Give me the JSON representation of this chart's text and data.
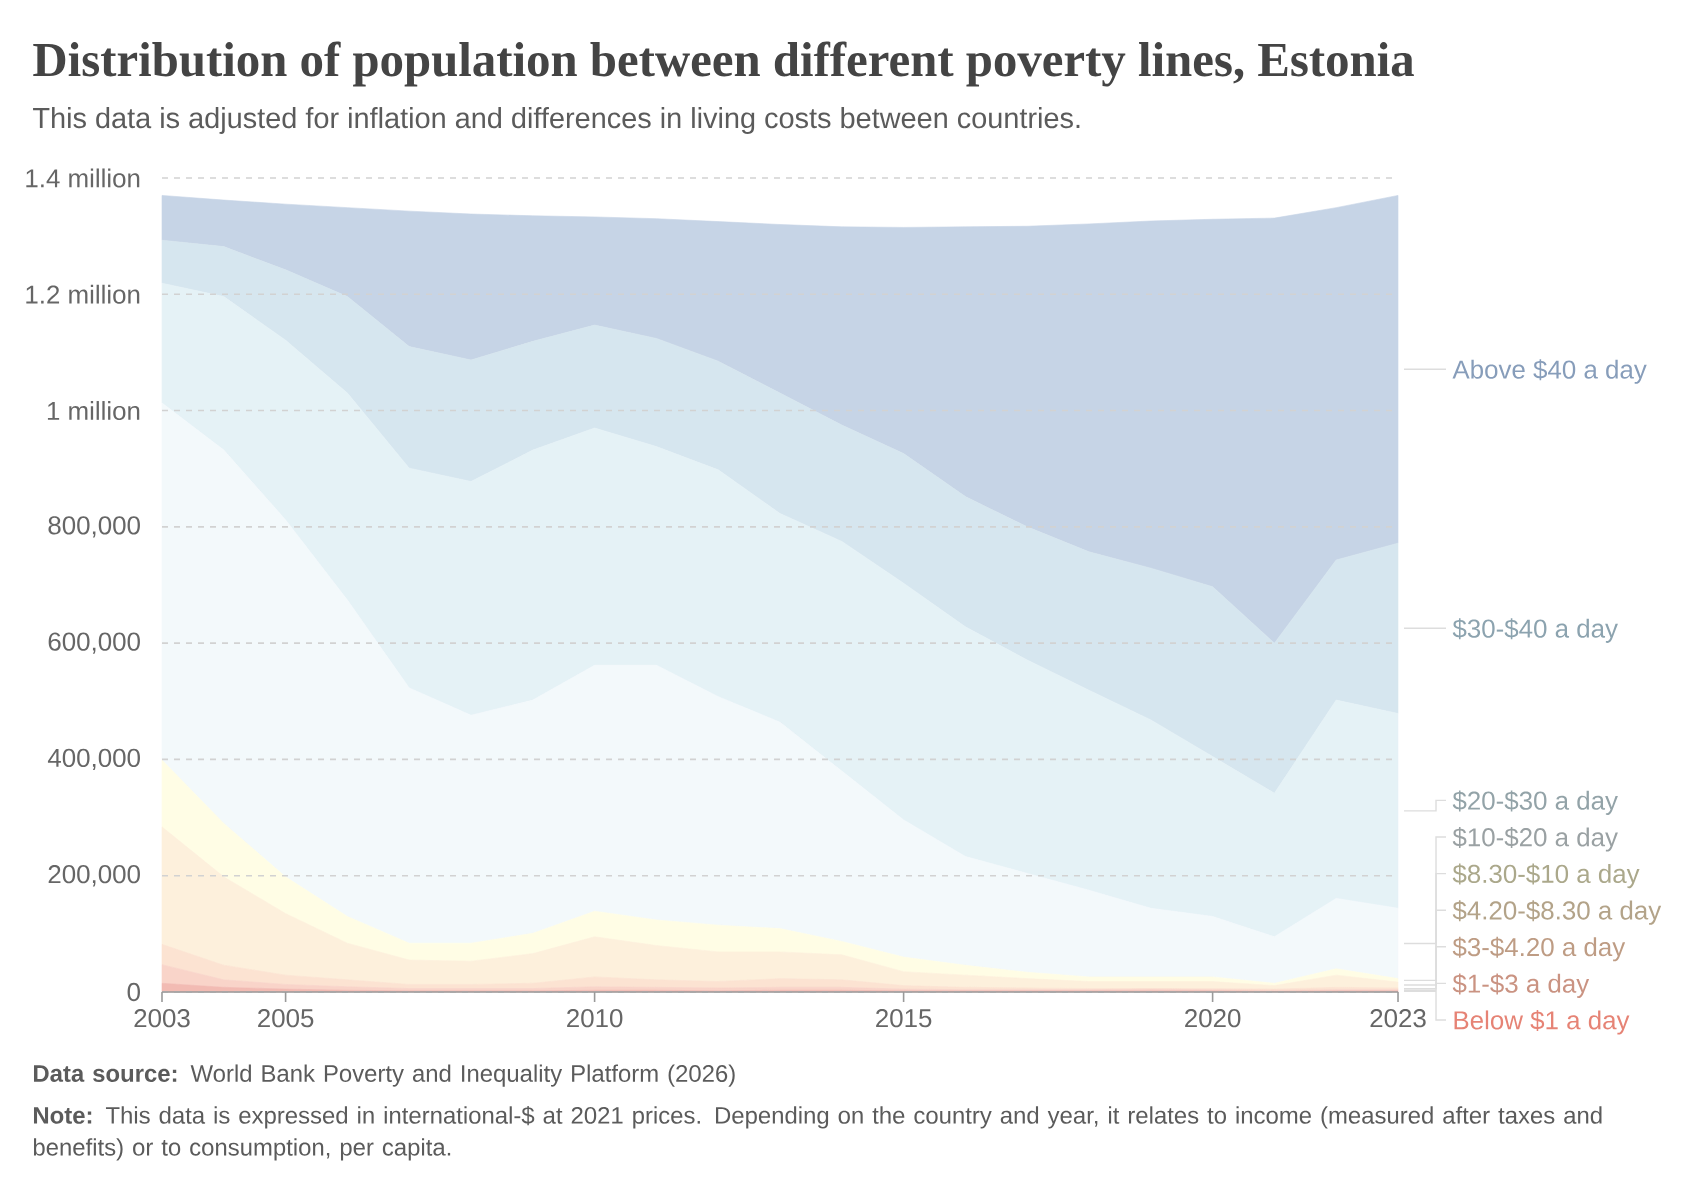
{
  "chart_data": {
    "type": "area",
    "stacked": true,
    "title": "Distribution of population between different poverty lines, Estonia",
    "subtitle": "This data is adjusted for inflation and differences in living costs between countries.",
    "annotations": [
      "**Data source:** World Bank Poverty and Inequality Platform (2026)",
      "**Note:** This data is expressed in international-$ at 2021 prices. Depending on the country and year, it relates to income (measured after taxes and benefits) or to consumption, per capita."
    ],
    "x": [
      2003,
      2004,
      2005,
      2006,
      2007,
      2008,
      2009,
      2010,
      2011,
      2012,
      2013,
      2014,
      2015,
      2016,
      2017,
      2018,
      2019,
      2020,
      2021,
      2022,
      2023
    ],
    "xlim": [
      2003,
      2023
    ],
    "xticks": [
      2003,
      2005,
      2010,
      2015,
      2020,
      2023
    ],
    "ylim": [
      0,
      1400000
    ],
    "yticks": [
      0,
      {
        "value": 200000,
        "label": "200,000"
      },
      {
        "value": 400000,
        "label": "400,000"
      },
      {
        "value": 600000,
        "label": "600,000"
      },
      {
        "value": 800000,
        "label": "800,000"
      },
      {
        "value": 1000000,
        "label": "1 million"
      },
      {
        "value": 1200000,
        "label": "1.2 million"
      },
      {
        "value": 1400000,
        "label": "1.4 million"
      }
    ],
    "grid": "y",
    "legend": "right",
    "series": [
      {
        "name": "Below $1 a day",
        "color": "#f2bbb3",
        "values": [
          15000,
          8000,
          5000,
          3000,
          2000,
          2000,
          2000,
          3000,
          3000,
          2000,
          3000,
          3000,
          2000,
          2000,
          2000,
          2000,
          2000,
          2000,
          1000,
          2000,
          2000
        ]
      },
      {
        "name": "$1-$3 a day",
        "color": "#f9d4c9",
        "values": [
          32000,
          13000,
          8000,
          6000,
          4000,
          4000,
          4000,
          6000,
          5000,
          5000,
          5000,
          5000,
          3000,
          2000,
          2000,
          2000,
          3000,
          2000,
          2000,
          2000,
          2000
        ]
      },
      {
        "name": "$3-$4.20 a day",
        "color": "#fce3d2",
        "values": [
          35000,
          25000,
          16000,
          12000,
          7000,
          7000,
          9000,
          17000,
          13000,
          11000,
          15000,
          13000,
          6000,
          4000,
          3000,
          2000,
          1000,
          2000,
          2000,
          4000,
          3000
        ]
      },
      {
        "name": "$4.20-$8.30 a day",
        "color": "#fdf0dc",
        "values": [
          202000,
          152000,
          106000,
          63000,
          42000,
          40000,
          51000,
          69000,
          59000,
          51000,
          46000,
          43000,
          24000,
          21000,
          16000,
          12000,
          12000,
          12000,
          6000,
          21000,
          10000
        ]
      },
      {
        "name": "$8.30-$10 a day",
        "color": "#fffde5",
        "values": [
          115000,
          92000,
          63000,
          46000,
          29000,
          31000,
          35000,
          44000,
          44000,
          46000,
          40000,
          23000,
          25000,
          17000,
          11000,
          8000,
          8000,
          8000,
          4000,
          11000,
          6000
        ]
      },
      {
        "name": "$10-$20 a day",
        "color": "#f3f9fb",
        "values": [
          614000,
          642000,
          614000,
          544000,
          439000,
          392000,
          401000,
          423000,
          438000,
          393000,
          355000,
          293000,
          236000,
          187000,
          170000,
          149000,
          118000,
          104000,
          80000,
          121000,
          121000
        ]
      },
      {
        "name": "$20-$30 a day",
        "color": "#e5f2f6",
        "values": [
          206000,
          264000,
          309000,
          356000,
          378000,
          402000,
          430000,
          408000,
          376000,
          390000,
          359000,
          395000,
          407000,
          395000,
          367000,
          344000,
          324000,
          275000,
          247000,
          341000,
          335000
        ]
      },
      {
        "name": "$30-$40 a day",
        "color": "#d6e6ef",
        "values": [
          74000,
          86000,
          121000,
          166000,
          209000,
          209000,
          187000,
          177000,
          186000,
          187000,
          207000,
          200000,
          223000,
          224000,
          229000,
          238000,
          261000,
          292000,
          258000,
          241000,
          293000
        ]
      },
      {
        "name": "Above $40 a day",
        "color": "#c6d4e6",
        "values": [
          77000,
          80000,
          113000,
          153000,
          233000,
          251000,
          216000,
          186000,
          206000,
          240000,
          290000,
          341000,
          389000,
          464000,
          517000,
          564000,
          597000,
          632000,
          731000,
          606000,
          598000
        ]
      }
    ]
  }
}
